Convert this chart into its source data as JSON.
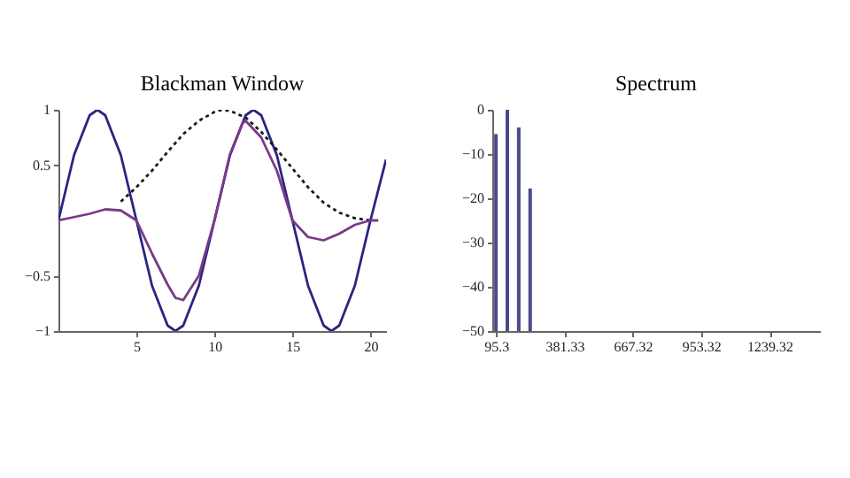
{
  "chart_data": [
    {
      "type": "line",
      "title": "Blackman Window",
      "xlim": [
        0,
        21
      ],
      "xticks": [
        5,
        10,
        15,
        20
      ],
      "ylim": [
        -1,
        1
      ],
      "yticks": [
        -1,
        -0.5,
        0.5,
        1
      ],
      "grid": false,
      "marker": "none",
      "series": [
        {
          "color": "#2a2580",
          "line_style": "solid",
          "x": [
            0,
            1,
            2,
            2.5,
            3,
            4,
            5,
            6,
            7,
            7.5,
            8,
            9,
            10,
            11,
            12,
            12.5,
            13,
            14,
            15,
            16,
            17,
            17.5,
            18,
            19,
            20,
            21
          ],
          "values": [
            0,
            0.59,
            0.95,
            1,
            0.95,
            0.59,
            0,
            -0.59,
            -0.95,
            -1,
            -0.95,
            -0.59,
            0,
            0.59,
            0.95,
            1,
            0.95,
            0.59,
            0,
            -0.59,
            -0.95,
            -1,
            -0.95,
            -0.59,
            0,
            0.55
          ]
        },
        {
          "color": "#1a1a1a",
          "line_style": "dotted",
          "x": [
            4,
            5,
            6,
            7,
            8,
            9,
            10,
            10.5,
            11,
            12,
            13,
            14,
            15,
            16,
            17,
            18,
            19,
            20
          ],
          "values": [
            0.17,
            0.3,
            0.45,
            0.62,
            0.78,
            0.9,
            0.98,
            1,
            0.99,
            0.93,
            0.8,
            0.64,
            0.47,
            0.3,
            0.16,
            0.07,
            0.02,
            0
          ]
        },
        {
          "color": "#7a3a8a",
          "line_style": "solid",
          "x": [
            0,
            1,
            2,
            3,
            4,
            5,
            6,
            7,
            7.5,
            8,
            9,
            10,
            11,
            11.8,
            12,
            13,
            14,
            15,
            16,
            17,
            18,
            19,
            20,
            20.5
          ],
          "values": [
            0,
            0.03,
            0.06,
            0.1,
            0.09,
            0,
            -0.3,
            -0.58,
            -0.7,
            -0.72,
            -0.5,
            0,
            0.6,
            0.88,
            0.9,
            0.75,
            0.45,
            0,
            -0.15,
            -0.18,
            -0.12,
            -0.04,
            0,
            0
          ]
        }
      ]
    },
    {
      "type": "bar",
      "title": "Spectrum",
      "x": [
        95.3,
        143,
        190.6,
        238.3
      ],
      "base": [
        -50,
        -50,
        -50,
        -50
      ],
      "values": [
        44.5,
        50,
        46,
        32.2
      ],
      "color": "#4a4a8a",
      "xlim": [
        80,
        1450
      ],
      "xticks": [
        95.3,
        381.33,
        667.32,
        953.32,
        1239.32
      ],
      "ylim": [
        -50,
        0
      ],
      "yticks": [
        -50,
        -40,
        -30,
        -20,
        -10,
        0
      ],
      "grid": false
    }
  ]
}
